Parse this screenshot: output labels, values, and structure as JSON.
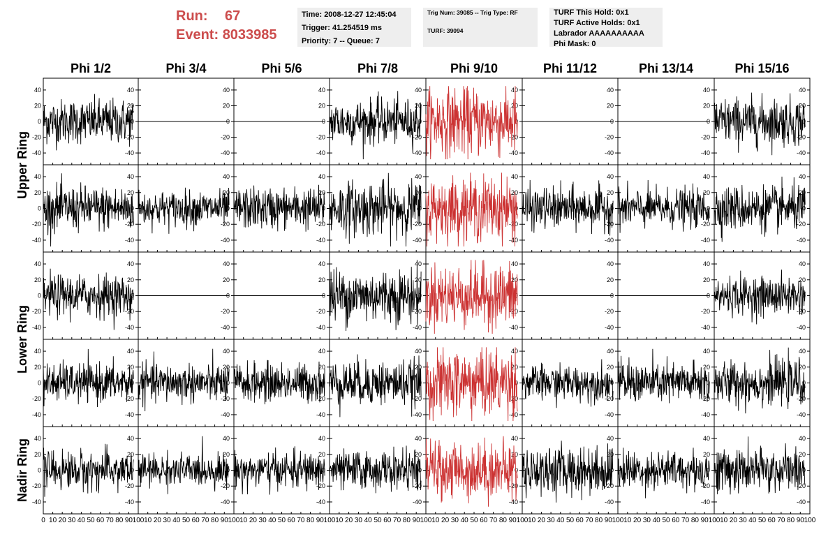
{
  "header": {
    "run_label": "Run:",
    "run_value": "67",
    "event_label": "Event:",
    "event_value": "8033985",
    "time_line": "Time: 2008-12-27 12:45:04",
    "trigger_line": "Trigger: 41.254519 ms",
    "priority_line": "Priority: 7 -- Queue: 7",
    "trig_line": "Trig Num: 39085 -- Trig Type: RF",
    "turf_line": "TURF: 39094",
    "turf_hold": "TURF This Hold: 0x1",
    "turf_active": "TURF Active Holds: 0x1",
    "labrador": "Labrador AAAAAAAAAA",
    "phi_mask": "Phi Mask: 0"
  },
  "colors": {
    "trace": "#000000",
    "highlight": "#cc3333",
    "title_red": "#cc4c4c",
    "info_bg": "#eeeeee"
  },
  "chart_data": {
    "type": "line",
    "columns": [
      "Phi 1/2",
      "Phi 3/4",
      "Phi 5/6",
      "Phi 7/8",
      "Phi 9/10",
      "Phi 11/12",
      "Phi 13/14",
      "Phi 15/16"
    ],
    "rows": [
      "Upper Ring",
      "Upper Ring",
      "Lower Ring",
      "Lower Ring",
      "Nadir Ring"
    ],
    "row_labels": [
      {
        "label": "Upper Ring",
        "spans_rows": [
          0,
          1
        ]
      },
      {
        "label": "Lower Ring",
        "spans_rows": [
          2,
          3
        ]
      },
      {
        "label": "Nadir Ring",
        "spans_rows": [
          4
        ]
      }
    ],
    "highlight_column": 4,
    "ylim": [
      -55,
      55
    ],
    "yticks": [
      -40,
      -20,
      0,
      20,
      40
    ],
    "xlim": [
      0,
      100
    ],
    "xticks": [
      0,
      10,
      20,
      30,
      40,
      50,
      60,
      70,
      80,
      90,
      100
    ],
    "samples": 256,
    "sample_range": [
      0,
      95
    ],
    "trace_amplitude": [
      [
        14,
        0,
        0,
        14,
        22,
        0,
        0,
        15
      ],
      [
        14,
        11,
        13,
        17,
        20,
        13,
        12,
        14
      ],
      [
        13,
        0,
        0,
        17,
        20,
        0,
        0,
        12
      ],
      [
        12,
        12,
        12,
        14,
        22,
        11,
        13,
        14
      ],
      [
        12,
        10,
        11,
        12,
        18,
        15,
        12,
        14
      ]
    ],
    "flat_panels": [
      [
        0,
        1
      ],
      [
        0,
        2
      ],
      [
        0,
        5
      ],
      [
        0,
        6
      ],
      [
        2,
        1
      ],
      [
        2,
        2
      ],
      [
        2,
        5
      ],
      [
        2,
        6
      ]
    ]
  }
}
